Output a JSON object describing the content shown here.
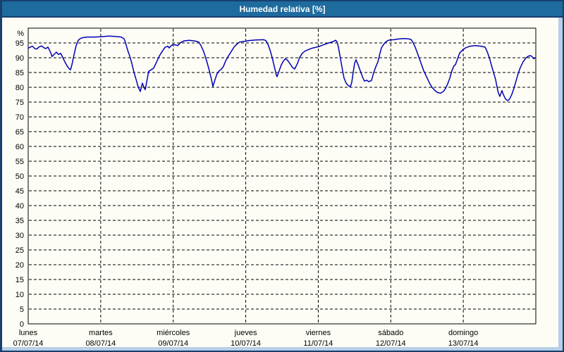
{
  "window": {
    "title": "Humedad relativa [%]"
  },
  "colors": {
    "titlebar_bg": "#1e6b9e",
    "frame_dark": "#17406e",
    "frame_light": "#b7cfe7",
    "chart_bg": "#fdfdf6",
    "line": "#0000b4",
    "grid": "#000000",
    "text": "#000000",
    "title_text": "#ffffff"
  },
  "chart_data": {
    "type": "line",
    "title": "Humedad relativa [%]",
    "ylabel": "%",
    "ylim": [
      0,
      100
    ],
    "yticks": [
      0,
      5,
      10,
      15,
      20,
      25,
      30,
      35,
      40,
      45,
      50,
      55,
      60,
      65,
      70,
      75,
      80,
      85,
      90,
      95
    ],
    "grid": "dashed",
    "legend": "none",
    "x_range_days": [
      0,
      7
    ],
    "x_axis_days": [
      {
        "name": "lunes",
        "date": "07/07/14"
      },
      {
        "name": "martes",
        "date": "08/07/14"
      },
      {
        "name": "miércoles",
        "date": "09/07/14"
      },
      {
        "name": "jueves",
        "date": "10/07/14"
      },
      {
        "name": "viernes",
        "date": "11/07/14"
      },
      {
        "name": "sábado",
        "date": "12/07/14"
      },
      {
        "name": "domingo",
        "date": "13/07/14"
      }
    ],
    "series": [
      {
        "name": "Humedad relativa [%]",
        "color": "#0000b4",
        "points": [
          [
            0,
            93.2
          ],
          [
            0.029,
            93.6
          ],
          [
            0.058,
            93.9
          ],
          [
            0.087,
            93.2
          ],
          [
            0.117,
            92.9
          ],
          [
            0.146,
            93.6
          ],
          [
            0.185,
            94
          ],
          [
            0.214,
            93.4
          ],
          [
            0.243,
            93.1
          ],
          [
            0.272,
            93.6
          ],
          [
            0.301,
            92.2
          ],
          [
            0.331,
            90.4
          ],
          [
            0.36,
            91.2
          ],
          [
            0.389,
            91.9
          ],
          [
            0.418,
            91.1
          ],
          [
            0.447,
            91.5
          ],
          [
            0.476,
            90.1
          ],
          [
            0.506,
            88.6
          ],
          [
            0.535,
            87.3
          ],
          [
            0.564,
            86.3
          ],
          [
            0.583,
            85.9
          ],
          [
            0.603,
            87.6
          ],
          [
            0.632,
            91
          ],
          [
            0.661,
            94.1
          ],
          [
            0.69,
            95.9
          ],
          [
            0.719,
            96.5
          ],
          [
            0.758,
            96.8
          ],
          [
            0.817,
            97
          ],
          [
            0.904,
            97
          ],
          [
            1,
            97.1
          ],
          [
            1.05,
            97.2
          ],
          [
            1.118,
            97.3
          ],
          [
            1.196,
            97.2
          ],
          [
            1.283,
            97
          ],
          [
            1.322,
            96.4
          ],
          [
            1.342,
            95.1
          ],
          [
            1.371,
            92.6
          ],
          [
            1.4,
            90.6
          ],
          [
            1.429,
            88.1
          ],
          [
            1.458,
            85.1
          ],
          [
            1.488,
            82.6
          ],
          [
            1.517,
            80.1
          ],
          [
            1.546,
            78.6
          ],
          [
            1.575,
            81.4
          ],
          [
            1.594,
            80.1
          ],
          [
            1.614,
            79.2
          ],
          [
            1.643,
            83
          ],
          [
            1.662,
            85.4
          ],
          [
            1.701,
            86
          ],
          [
            1.731,
            86.5
          ],
          [
            1.769,
            88.5
          ],
          [
            1.808,
            90.6
          ],
          [
            1.847,
            92.1
          ],
          [
            1.886,
            93.5
          ],
          [
            1.925,
            93.9
          ],
          [
            1.944,
            93.3
          ],
          [
            1.974,
            94.1
          ],
          [
            2,
            94.5
          ],
          [
            2.032,
            94.3
          ],
          [
            2.061,
            94.1
          ],
          [
            2.1,
            95.1
          ],
          [
            2.149,
            95.7
          ],
          [
            2.217,
            95.9
          ],
          [
            2.294,
            95.7
          ],
          [
            2.353,
            95.3
          ],
          [
            2.382,
            94.1
          ],
          [
            2.411,
            92.6
          ],
          [
            2.44,
            90.6
          ],
          [
            2.47,
            88.1
          ],
          [
            2.499,
            85.6
          ],
          [
            2.528,
            82.6
          ],
          [
            2.547,
            80.3
          ],
          [
            2.576,
            82.6
          ],
          [
            2.605,
            84.6
          ],
          [
            2.635,
            85.6
          ],
          [
            2.664,
            86.1
          ],
          [
            2.693,
            87.1
          ],
          [
            2.722,
            88.9
          ],
          [
            2.761,
            90.6
          ],
          [
            2.8,
            92.1
          ],
          [
            2.839,
            93.6
          ],
          [
            2.878,
            94.6
          ],
          [
            2.917,
            95.3
          ],
          [
            3,
            95.6
          ],
          [
            3.043,
            95.8
          ],
          [
            3.141,
            96
          ],
          [
            3.247,
            96.1
          ],
          [
            3.277,
            95.8
          ],
          [
            3.306,
            94.6
          ],
          [
            3.335,
            92.6
          ],
          [
            3.364,
            90.1
          ],
          [
            3.393,
            87.1
          ],
          [
            3.422,
            84.1
          ],
          [
            3.432,
            83.6
          ],
          [
            3.461,
            85.6
          ],
          [
            3.49,
            87.6
          ],
          [
            3.52,
            88.9
          ],
          [
            3.549,
            89.7
          ],
          [
            3.578,
            89.1
          ],
          [
            3.607,
            88.1
          ],
          [
            3.646,
            86.7
          ],
          [
            3.675,
            86.2
          ],
          [
            3.714,
            88.1
          ],
          [
            3.743,
            90.1
          ],
          [
            3.782,
            91.6
          ],
          [
            3.821,
            92.3
          ],
          [
            3.879,
            92.9
          ],
          [
            3.928,
            93.3
          ],
          [
            3.996,
            93.7
          ],
          [
            4.064,
            94.3
          ],
          [
            4.132,
            94.9
          ],
          [
            4.2,
            95.4
          ],
          [
            4.239,
            95.9
          ],
          [
            4.258,
            95.4
          ],
          [
            4.278,
            93.6
          ],
          [
            4.307,
            89.6
          ],
          [
            4.336,
            85.6
          ],
          [
            4.356,
            83.1
          ],
          [
            4.385,
            81.4
          ],
          [
            4.414,
            80.6
          ],
          [
            4.443,
            80.2
          ],
          [
            4.462,
            81.6
          ],
          [
            4.482,
            85.1
          ],
          [
            4.501,
            88.1
          ],
          [
            4.521,
            89.3
          ],
          [
            4.55,
            87.6
          ],
          [
            4.579,
            85.6
          ],
          [
            4.608,
            83.6
          ],
          [
            4.637,
            82.1
          ],
          [
            4.667,
            82.4
          ],
          [
            4.696,
            81.9
          ],
          [
            4.735,
            82.3
          ],
          [
            4.764,
            84.9
          ],
          [
            4.793,
            86.9
          ],
          [
            4.822,
            88.6
          ],
          [
            4.852,
            91.6
          ],
          [
            4.871,
            93.3
          ],
          [
            4.89,
            94.1
          ],
          [
            4.919,
            95.1
          ],
          [
            4.958,
            95.8
          ],
          [
            4.987,
            96
          ],
          [
            5.046,
            96.1
          ],
          [
            5.094,
            96.3
          ],
          [
            5.172,
            96.5
          ],
          [
            5.24,
            96.4
          ],
          [
            5.279,
            96.2
          ],
          [
            5.308,
            95.1
          ],
          [
            5.337,
            93.6
          ],
          [
            5.367,
            91.6
          ],
          [
            5.396,
            89.6
          ],
          [
            5.425,
            87.6
          ],
          [
            5.454,
            85.6
          ],
          [
            5.483,
            84.1
          ],
          [
            5.512,
            82.6
          ],
          [
            5.542,
            81.1
          ],
          [
            5.571,
            79.9
          ],
          [
            5.61,
            78.9
          ],
          [
            5.648,
            78.2
          ],
          [
            5.687,
            78
          ],
          [
            5.726,
            78.6
          ],
          [
            5.755,
            79.6
          ],
          [
            5.784,
            81.1
          ],
          [
            5.814,
            83.1
          ],
          [
            5.843,
            85.6
          ],
          [
            5.872,
            87.3
          ],
          [
            5.891,
            87.6
          ],
          [
            5.921,
            89.6
          ],
          [
            5.95,
            91.6
          ],
          [
            5.998,
            92.8
          ],
          [
            6.037,
            93.4
          ],
          [
            6.096,
            93.9
          ],
          [
            6.164,
            94.1
          ],
          [
            6.241,
            93.9
          ],
          [
            6.3,
            93.6
          ],
          [
            6.329,
            92.1
          ],
          [
            6.358,
            90.1
          ],
          [
            6.387,
            87.6
          ],
          [
            6.416,
            85.1
          ],
          [
            6.446,
            82.6
          ],
          [
            6.465,
            80.1
          ],
          [
            6.484,
            78.1
          ],
          [
            6.504,
            76.9
          ],
          [
            6.533,
            78.9
          ],
          [
            6.552,
            77.6
          ],
          [
            6.581,
            76.1
          ],
          [
            6.611,
            75.5
          ],
          [
            6.64,
            76.1
          ],
          [
            6.669,
            77.6
          ],
          [
            6.698,
            79.6
          ],
          [
            6.727,
            82.1
          ],
          [
            6.756,
            84.6
          ],
          [
            6.785,
            86.6
          ],
          [
            6.824,
            88.6
          ],
          [
            6.863,
            89.9
          ],
          [
            6.902,
            90.6
          ],
          [
            6.931,
            90.7
          ],
          [
            6.95,
            90.3
          ],
          [
            6.97,
            89.7
          ],
          [
            6.989,
            89.9
          ]
        ]
      }
    ]
  }
}
